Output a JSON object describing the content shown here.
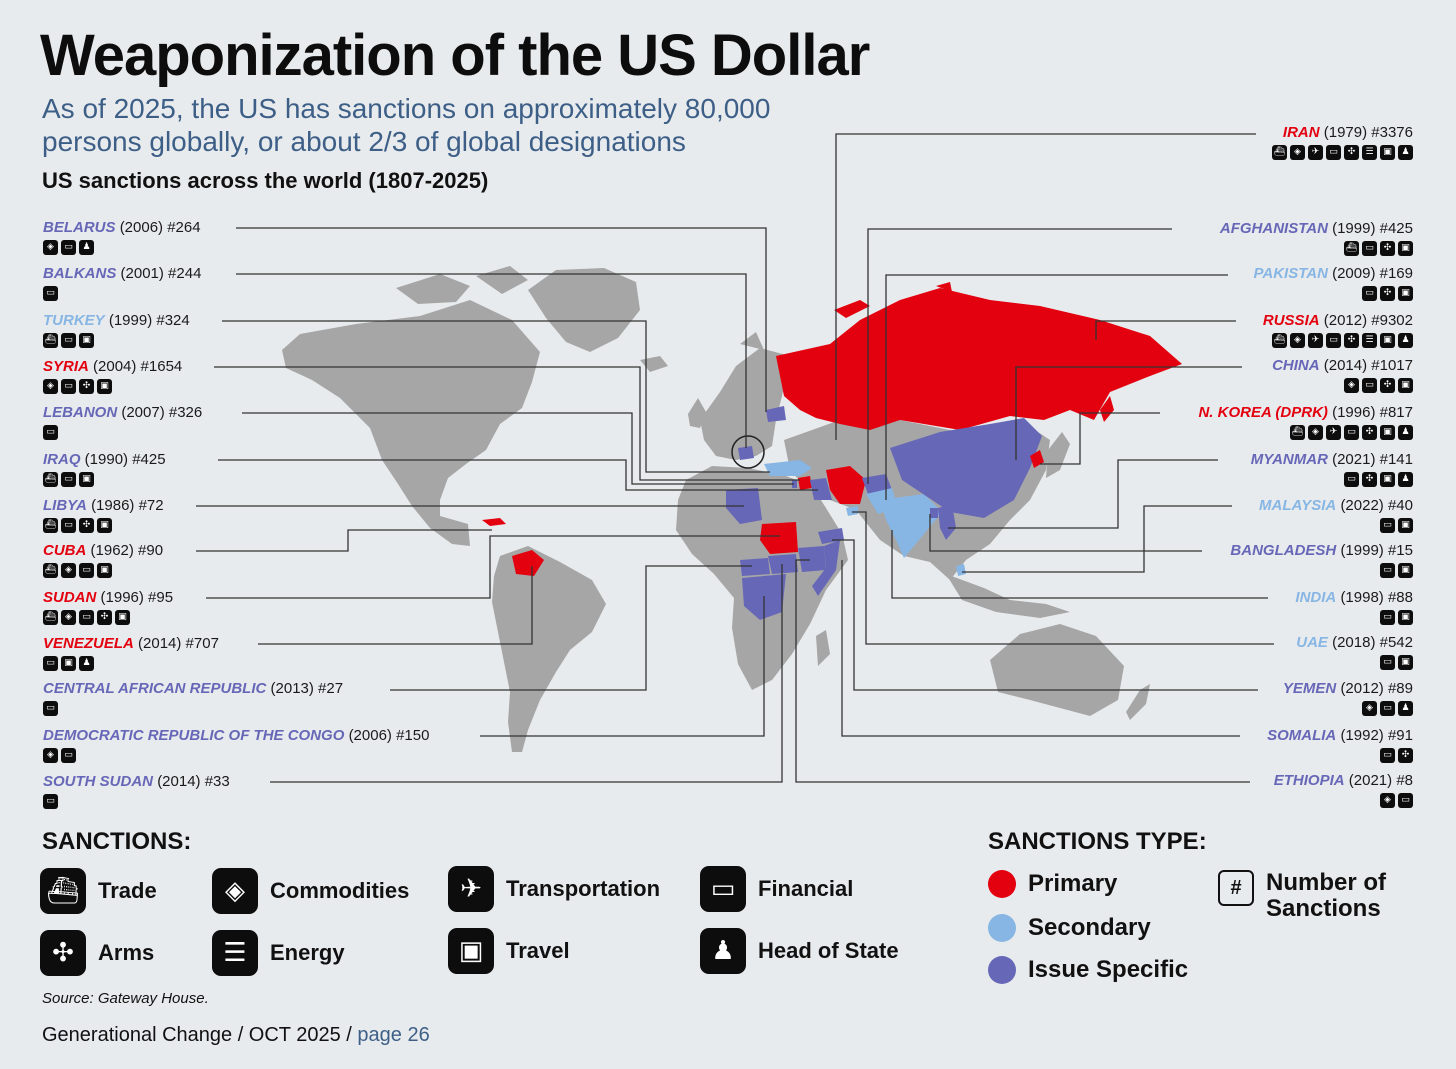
{
  "header": {
    "title": "Weaponization of the US Dollar",
    "subtitle": "As of 2025, the US has sanctions on approximately 80,000 persons globally, or about 2/3 of global designations",
    "section_heading": "US sanctions across the world (1807-2025)"
  },
  "colors": {
    "primary": "#e3000f",
    "secondary": "#87b6e4",
    "issue": "#6767b8",
    "land": "#a6a6a6",
    "background": "#e8ebed",
    "title_blue": "#3d5f87"
  },
  "countries_left": [
    {
      "name": "BELARUS",
      "year": "(2006)",
      "count": "#264",
      "type": "issue",
      "icons": [
        "commodities-icon",
        "financial-icon",
        "head-of-state-icon"
      ]
    },
    {
      "name": "BALKANS",
      "year": "(2001)",
      "count": "#244",
      "type": "issue",
      "icons": [
        "financial-icon"
      ]
    },
    {
      "name": "TURKEY",
      "year": "(1999)",
      "count": "#324",
      "type": "secondary",
      "icons": [
        "trade-icon",
        "financial-icon",
        "travel-icon"
      ]
    },
    {
      "name": "SYRIA",
      "year": "(2004)",
      "count": "#1654",
      "type": "primary",
      "icons": [
        "commodities-icon",
        "financial-icon",
        "arms-icon",
        "travel-icon"
      ]
    },
    {
      "name": "LEBANON",
      "year": "(2007)",
      "count": "#326",
      "type": "issue",
      "icons": [
        "financial-icon"
      ]
    },
    {
      "name": "IRAQ",
      "year": "(1990)",
      "count": "#425",
      "type": "issue",
      "icons": [
        "trade-icon",
        "financial-icon",
        "travel-icon"
      ]
    },
    {
      "name": "LIBYA",
      "year": "(1986)",
      "count": "#72",
      "type": "issue",
      "icons": [
        "trade-icon",
        "financial-icon",
        "arms-icon",
        "travel-icon"
      ]
    },
    {
      "name": "CUBA",
      "year": "(1962)",
      "count": "#90",
      "type": "primary",
      "icons": [
        "trade-icon",
        "commodities-icon",
        "financial-icon",
        "travel-icon"
      ]
    },
    {
      "name": "SUDAN",
      "year": "(1996)",
      "count": "#95",
      "type": "primary",
      "icons": [
        "trade-icon",
        "commodities-icon",
        "financial-icon",
        "arms-icon",
        "travel-icon"
      ]
    },
    {
      "name": "VENEZUELA",
      "year": "(2014)",
      "count": "#707",
      "type": "primary",
      "icons": [
        "financial-icon",
        "travel-icon",
        "head-of-state-icon"
      ]
    },
    {
      "name": "CENTRAL AFRICAN REPUBLIC",
      "year": "(2013)",
      "count": "#27",
      "type": "issue",
      "icons": [
        "financial-icon"
      ]
    },
    {
      "name": "DEMOCRATIC REPUBLIC OF THE CONGO",
      "year": "(2006)",
      "count": "#150",
      "type": "issue",
      "icons": [
        "commodities-icon",
        "financial-icon"
      ]
    },
    {
      "name": "SOUTH SUDAN",
      "year": "(2014)",
      "count": "#33",
      "type": "issue",
      "icons": [
        "financial-icon"
      ]
    }
  ],
  "countries_right": [
    {
      "name": "IRAN",
      "year": "(1979)",
      "count": "#3376",
      "type": "primary",
      "icons": [
        "trade-icon",
        "commodities-icon",
        "transportation-icon",
        "financial-icon",
        "arms-icon",
        "energy-icon",
        "travel-icon",
        "head-of-state-icon"
      ]
    },
    {
      "name": "AFGHANISTAN",
      "year": "(1999)",
      "count": "#425",
      "type": "issue",
      "icons": [
        "trade-icon",
        "financial-icon",
        "arms-icon",
        "travel-icon"
      ]
    },
    {
      "name": "PAKISTAN",
      "year": "(2009)",
      "count": "#169",
      "type": "secondary",
      "icons": [
        "financial-icon",
        "arms-icon",
        "travel-icon"
      ]
    },
    {
      "name": "RUSSIA",
      "year": "(2012)",
      "count": "#9302",
      "type": "primary",
      "icons": [
        "trade-icon",
        "commodities-icon",
        "transportation-icon",
        "financial-icon",
        "arms-icon",
        "energy-icon",
        "travel-icon",
        "head-of-state-icon"
      ]
    },
    {
      "name": "CHINA",
      "year": "(2014)",
      "count": "#1017",
      "type": "issue",
      "icons": [
        "commodities-icon",
        "financial-icon",
        "arms-icon",
        "travel-icon"
      ]
    },
    {
      "name": "N. KOREA (DPRK)",
      "year": "(1996)",
      "count": "#817",
      "type": "primary",
      "icons": [
        "trade-icon",
        "commodities-icon",
        "transportation-icon",
        "financial-icon",
        "arms-icon",
        "travel-icon",
        "head-of-state-icon"
      ]
    },
    {
      "name": "MYANMAR",
      "year": "(2021)",
      "count": "#141",
      "type": "issue",
      "icons": [
        "financial-icon",
        "arms-icon",
        "travel-icon",
        "head-of-state-icon"
      ]
    },
    {
      "name": "MALAYSIA",
      "year": "(2022)",
      "count": "#40",
      "type": "secondary",
      "icons": [
        "financial-icon",
        "travel-icon"
      ]
    },
    {
      "name": "BANGLADESH",
      "year": "(1999)",
      "count": "#15",
      "type": "issue",
      "icons": [
        "financial-icon",
        "travel-icon"
      ]
    },
    {
      "name": "INDIA",
      "year": "(1998)",
      "count": "#88",
      "type": "secondary",
      "icons": [
        "financial-icon",
        "travel-icon"
      ]
    },
    {
      "name": "UAE",
      "year": "(2018)",
      "count": "#542",
      "type": "secondary",
      "icons": [
        "financial-icon",
        "travel-icon"
      ]
    },
    {
      "name": "YEMEN",
      "year": "(2012)",
      "count": "#89",
      "type": "issue",
      "icons": [
        "commodities-icon",
        "financial-icon",
        "head-of-state-icon"
      ]
    },
    {
      "name": "SOMALIA",
      "year": "(1992)",
      "count": "#91",
      "type": "issue",
      "icons": [
        "financial-icon",
        "arms-icon"
      ]
    },
    {
      "name": "ETHIOPIA",
      "year": "(2021)",
      "count": "#8",
      "type": "issue",
      "icons": [
        "commodities-icon",
        "financial-icon"
      ]
    }
  ],
  "legend": {
    "sanctions_heading": "SANCTIONS:",
    "sanctions": [
      {
        "label": "Trade",
        "icon": "trade-icon"
      },
      {
        "label": "Commodities",
        "icon": "commodities-icon"
      },
      {
        "label": "Transportation",
        "icon": "transportation-icon"
      },
      {
        "label": "Financial",
        "icon": "financial-icon"
      },
      {
        "label": "Arms",
        "icon": "arms-icon"
      },
      {
        "label": "Energy",
        "icon": "energy-icon"
      },
      {
        "label": "Travel",
        "icon": "travel-icon"
      },
      {
        "label": "Head of State",
        "icon": "head-of-state-icon"
      }
    ],
    "types_heading": "SANCTIONS TYPE:",
    "types": [
      {
        "label": "Primary",
        "color": "#e3000f"
      },
      {
        "label": "Secondary",
        "color": "#87b6e4"
      },
      {
        "label": "Issue Specific",
        "color": "#6767b8"
      }
    ],
    "number_symbol": "#",
    "number_label": "Number of Sanctions"
  },
  "source": "Source: Gateway House.",
  "footer": {
    "publication": "Generational Change / OCT 2025 / ",
    "page": "page 26"
  }
}
